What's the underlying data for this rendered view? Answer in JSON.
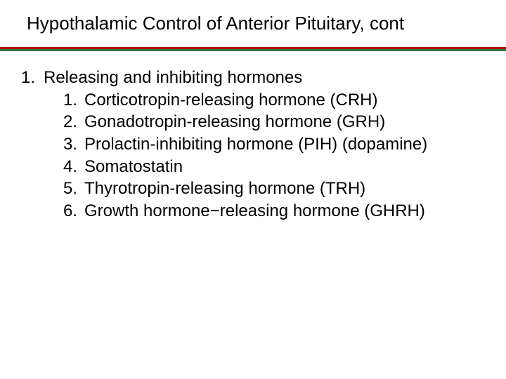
{
  "title": "Hypothalamic Control of Anterior Pituitary, cont",
  "rule_colors": {
    "top": "#b00000",
    "bottom": "#2a7a3f"
  },
  "background_color": "#ffffff",
  "text_color": "#000000",
  "title_fontsize": 26,
  "body_fontsize": 24,
  "outer": {
    "number": "1.",
    "text": "Releasing and inhibiting hormones",
    "items": [
      {
        "number": "1.",
        "text": "Corticotropin-releasing hormone (CRH)"
      },
      {
        "number": "2.",
        "text": "Gonadotropin-releasing hormone (GRH)"
      },
      {
        "number": "3.",
        "text": "Prolactin-inhibiting hormone (PIH) (dopamine)"
      },
      {
        "number": "4.",
        "text": "Somatostatin"
      },
      {
        "number": "5.",
        "text": "Thyrotropin-releasing hormone (TRH)"
      },
      {
        "number": "6.",
        "text": "Growth hormone−releasing hormone (GHRH)"
      }
    ]
  }
}
